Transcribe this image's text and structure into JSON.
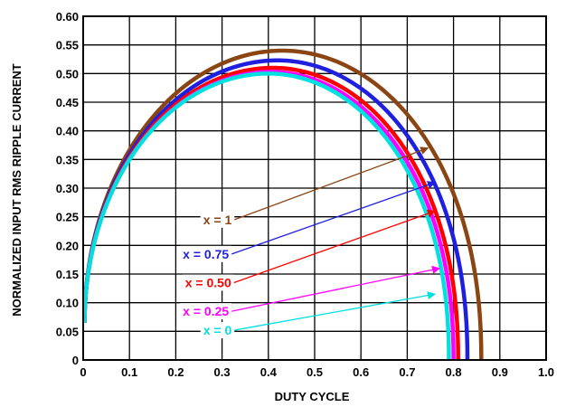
{
  "chart_data": {
    "type": "line",
    "xlabel": "DUTY CYCLE",
    "ylabel": "NORMALIZED INPUT RMS RIPPLE CURRENT",
    "xlim": [
      0,
      1.0
    ],
    "ylim": [
      0,
      0.6
    ],
    "x_ticks": [
      "0",
      "0.1",
      "0.2",
      "0.3",
      "0.4",
      "0.5",
      "0.6",
      "0.7",
      "0.8",
      "0.9",
      "1.0"
    ],
    "y_ticks": [
      "0",
      "0.05",
      "0.10",
      "0.15",
      "0.20",
      "0.25",
      "0.30",
      "0.35",
      "0.40",
      "0.45",
      "0.50",
      "0.55",
      "0.60"
    ],
    "grid": true,
    "legend_placement": "inline annotations with arrows",
    "series": [
      {
        "name": "x = 1",
        "color": "#8B4513",
        "x_end": 0.86,
        "peak_x": 0.43,
        "peak_y": 0.54,
        "label_pos": [
          0.29,
          0.245
        ],
        "arrow_to": [
          0.745,
          0.37
        ]
      },
      {
        "name": "x = 0.75",
        "color": "#1f1fe0",
        "x_end": 0.83,
        "peak_x": 0.42,
        "peak_y": 0.523,
        "label_pos": [
          0.265,
          0.185
        ],
        "arrow_to": [
          0.76,
          0.31
        ]
      },
      {
        "name": "x = 0.50",
        "color": "#ff0000",
        "x_end": 0.81,
        "peak_x": 0.41,
        "peak_y": 0.51,
        "label_pos": [
          0.27,
          0.135
        ],
        "arrow_to": [
          0.76,
          0.26
        ]
      },
      {
        "name": "x = 0.25",
        "color": "#ff00ff",
        "x_end": 0.8,
        "peak_x": 0.405,
        "peak_y": 0.503,
        "label_pos": [
          0.265,
          0.085
        ],
        "arrow_to": [
          0.77,
          0.16
        ]
      },
      {
        "name": "x = 0",
        "color": "#00e0e0",
        "x_end": 0.79,
        "peak_x": 0.4,
        "peak_y": 0.5,
        "label_pos": [
          0.29,
          0.052
        ],
        "arrow_to": [
          0.76,
          0.115
        ]
      }
    ]
  }
}
